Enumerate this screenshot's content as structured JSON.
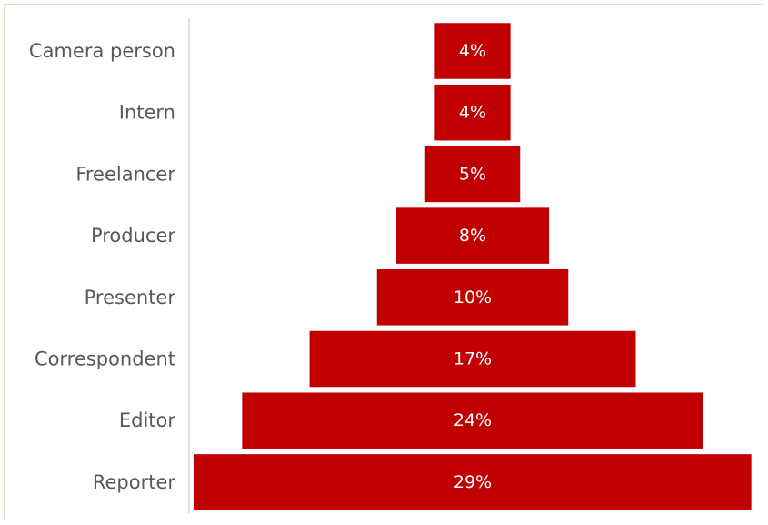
{
  "chart_data": {
    "type": "bar",
    "orientation": "horizontal-centered-funnel",
    "categories": [
      "Camera person",
      "Intern",
      "Freelancer",
      "Producer",
      "Presenter",
      "Correspondent",
      "Editor",
      "Reporter"
    ],
    "values": [
      4,
      4,
      5,
      8,
      10,
      17,
      24,
      29
    ],
    "value_labels": [
      "4%",
      "4%",
      "5%",
      "8%",
      "10%",
      "17%",
      "24%",
      "29%"
    ],
    "value_unit": "%",
    "bar_color": "#c00000",
    "label_color": "#ffffff",
    "category_color": "#595959",
    "title": "",
    "xlabel": "",
    "ylabel": "",
    "grid": false,
    "legend": "none"
  }
}
